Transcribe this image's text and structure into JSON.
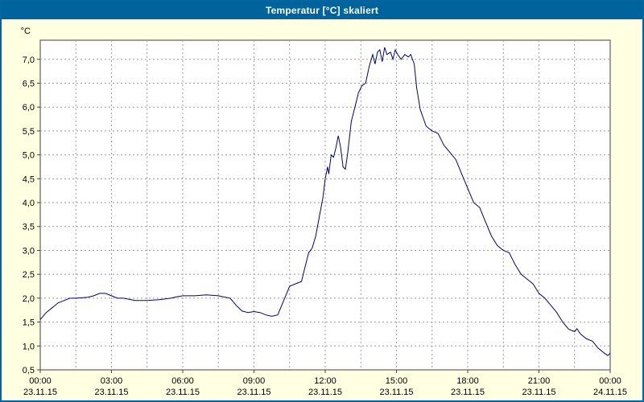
{
  "window": {
    "title": "Temperatur [°C] skaliert"
  },
  "colors": {
    "titlebar_bg": "#01639B",
    "titlebar_text": "#FFFFFF",
    "window_bg": "#FFFFE1",
    "window_border": "#0166A0",
    "plot_bg": "#FFFFFF",
    "plot_border": "#404040",
    "grid": "#9A9AA0",
    "axis_text": "#000000",
    "line": "#000080"
  },
  "chart_data": {
    "type": "line",
    "title": "Temperatur [°C] skaliert",
    "unit_label": "°C",
    "grid": "dashed",
    "legend": "none",
    "x_axis": {
      "range": [
        0,
        24
      ],
      "ticks": [
        0,
        3,
        6,
        9,
        12,
        15,
        18,
        21,
        24
      ],
      "time_labels": [
        "00:00",
        "03:00",
        "06:00",
        "09:00",
        "12:00",
        "15:00",
        "18:00",
        "21:00",
        "00:00"
      ],
      "date_labels": [
        "23.11.15",
        "23.11.15",
        "23.11.15",
        "23.11.15",
        "23.11.15",
        "23.11.15",
        "23.11.15",
        "23.11.15",
        "24.11.15"
      ],
      "minor_grid_step_hours": 1.5
    },
    "y_axis": {
      "range": [
        0.5,
        7.4
      ],
      "ticks": [
        0.5,
        1.0,
        1.5,
        2.0,
        2.5,
        3.0,
        3.5,
        4.0,
        4.5,
        5.0,
        5.5,
        6.0,
        6.5,
        7.0
      ],
      "tick_labels": [
        "0,5",
        "1,0",
        "1,5",
        "2,0",
        "2,5",
        "3,0",
        "3,5",
        "4,0",
        "4,5",
        "5,0",
        "5,5",
        "6,0",
        "6,5",
        "7,0"
      ]
    },
    "series": [
      {
        "name": "Temperatur",
        "color": "#000080",
        "points": [
          [
            0,
            1.55
          ],
          [
            0.25,
            1.7
          ],
          [
            0.5,
            1.8
          ],
          [
            0.75,
            1.9
          ],
          [
            1,
            1.95
          ],
          [
            1.25,
            2.0
          ],
          [
            1.5,
            2.0
          ],
          [
            2,
            2.02
          ],
          [
            2.25,
            2.05
          ],
          [
            2.5,
            2.1
          ],
          [
            2.75,
            2.1
          ],
          [
            3,
            2.05
          ],
          [
            3.25,
            2.0
          ],
          [
            3.5,
            2.0
          ],
          [
            4,
            1.95
          ],
          [
            4.5,
            1.95
          ],
          [
            5,
            1.97
          ],
          [
            5.5,
            2.0
          ],
          [
            5.75,
            2.03
          ],
          [
            6,
            2.05
          ],
          [
            6.5,
            2.05
          ],
          [
            7,
            2.07
          ],
          [
            7.5,
            2.05
          ],
          [
            8,
            2.0
          ],
          [
            8.25,
            1.85
          ],
          [
            8.5,
            1.73
          ],
          [
            8.75,
            1.7
          ],
          [
            9,
            1.72
          ],
          [
            9.25,
            1.7
          ],
          [
            9.5,
            1.65
          ],
          [
            9.75,
            1.62
          ],
          [
            10,
            1.65
          ],
          [
            10.25,
            1.95
          ],
          [
            10.5,
            2.25
          ],
          [
            10.75,
            2.3
          ],
          [
            11,
            2.35
          ],
          [
            11.15,
            2.65
          ],
          [
            11.3,
            2.95
          ],
          [
            11.45,
            3.05
          ],
          [
            11.6,
            3.3
          ],
          [
            11.75,
            3.7
          ],
          [
            11.9,
            4.1
          ],
          [
            12,
            4.5
          ],
          [
            12.1,
            4.75
          ],
          [
            12.15,
            4.6
          ],
          [
            12.25,
            5.0
          ],
          [
            12.35,
            4.95
          ],
          [
            12.45,
            5.15
          ],
          [
            12.55,
            5.4
          ],
          [
            12.65,
            5.15
          ],
          [
            12.75,
            4.75
          ],
          [
            12.85,
            4.7
          ],
          [
            12.95,
            5.05
          ],
          [
            13.1,
            5.7
          ],
          [
            13.25,
            6.0
          ],
          [
            13.4,
            6.3
          ],
          [
            13.55,
            6.45
          ],
          [
            13.7,
            6.5
          ],
          [
            13.85,
            6.85
          ],
          [
            14,
            7.1
          ],
          [
            14.1,
            6.9
          ],
          [
            14.2,
            7.15
          ],
          [
            14.3,
            7.2
          ],
          [
            14.4,
            6.95
          ],
          [
            14.5,
            7.25
          ],
          [
            14.6,
            7.1
          ],
          [
            14.75,
            7.15
          ],
          [
            14.85,
            7.0
          ],
          [
            14.95,
            7.2
          ],
          [
            15.05,
            7.1
          ],
          [
            15.2,
            7.0
          ],
          [
            15.35,
            7.1
          ],
          [
            15.5,
            7.05
          ],
          [
            15.6,
            7.1
          ],
          [
            15.75,
            6.9
          ],
          [
            15.85,
            6.4
          ],
          [
            16,
            5.95
          ],
          [
            16.25,
            5.6
          ],
          [
            16.5,
            5.5
          ],
          [
            16.75,
            5.45
          ],
          [
            17,
            5.2
          ],
          [
            17.25,
            5.05
          ],
          [
            17.5,
            4.9
          ],
          [
            17.75,
            4.6
          ],
          [
            18,
            4.3
          ],
          [
            18.25,
            4.0
          ],
          [
            18.5,
            3.9
          ],
          [
            18.75,
            3.6
          ],
          [
            19,
            3.3
          ],
          [
            19.25,
            3.1
          ],
          [
            19.5,
            3.0
          ],
          [
            19.75,
            2.95
          ],
          [
            20,
            2.7
          ],
          [
            20.25,
            2.5
          ],
          [
            20.5,
            2.4
          ],
          [
            20.75,
            2.3
          ],
          [
            21,
            2.1
          ],
          [
            21.25,
            2.0
          ],
          [
            21.5,
            1.85
          ],
          [
            21.75,
            1.7
          ],
          [
            22,
            1.5
          ],
          [
            22.25,
            1.35
          ],
          [
            22.5,
            1.3
          ],
          [
            22.6,
            1.36
          ],
          [
            22.75,
            1.25
          ],
          [
            23,
            1.15
          ],
          [
            23.25,
            1.1
          ],
          [
            23.5,
            0.95
          ],
          [
            23.75,
            0.85
          ],
          [
            23.9,
            0.8
          ],
          [
            24,
            0.85
          ]
        ]
      }
    ]
  }
}
